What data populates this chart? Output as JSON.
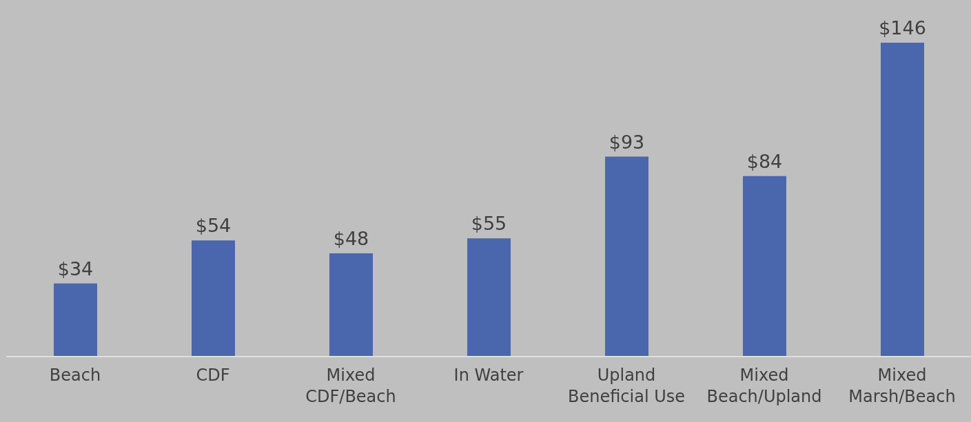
{
  "chart_data": {
    "type": "bar",
    "categories": [
      "Beach",
      "CDF",
      "Mixed\nCDF/Beach",
      "In Water",
      "Upland\nBeneficial Use",
      "Mixed\nBeach/Upland",
      "Mixed\nMarsh/Beach"
    ],
    "values": [
      34,
      54,
      48,
      55,
      93,
      84,
      146
    ],
    "value_labels": [
      "$34",
      "$54",
      "$48",
      "$55",
      "$93",
      "$84",
      "$146"
    ],
    "color": "#4a66ad",
    "grid": false,
    "legend": false
  }
}
